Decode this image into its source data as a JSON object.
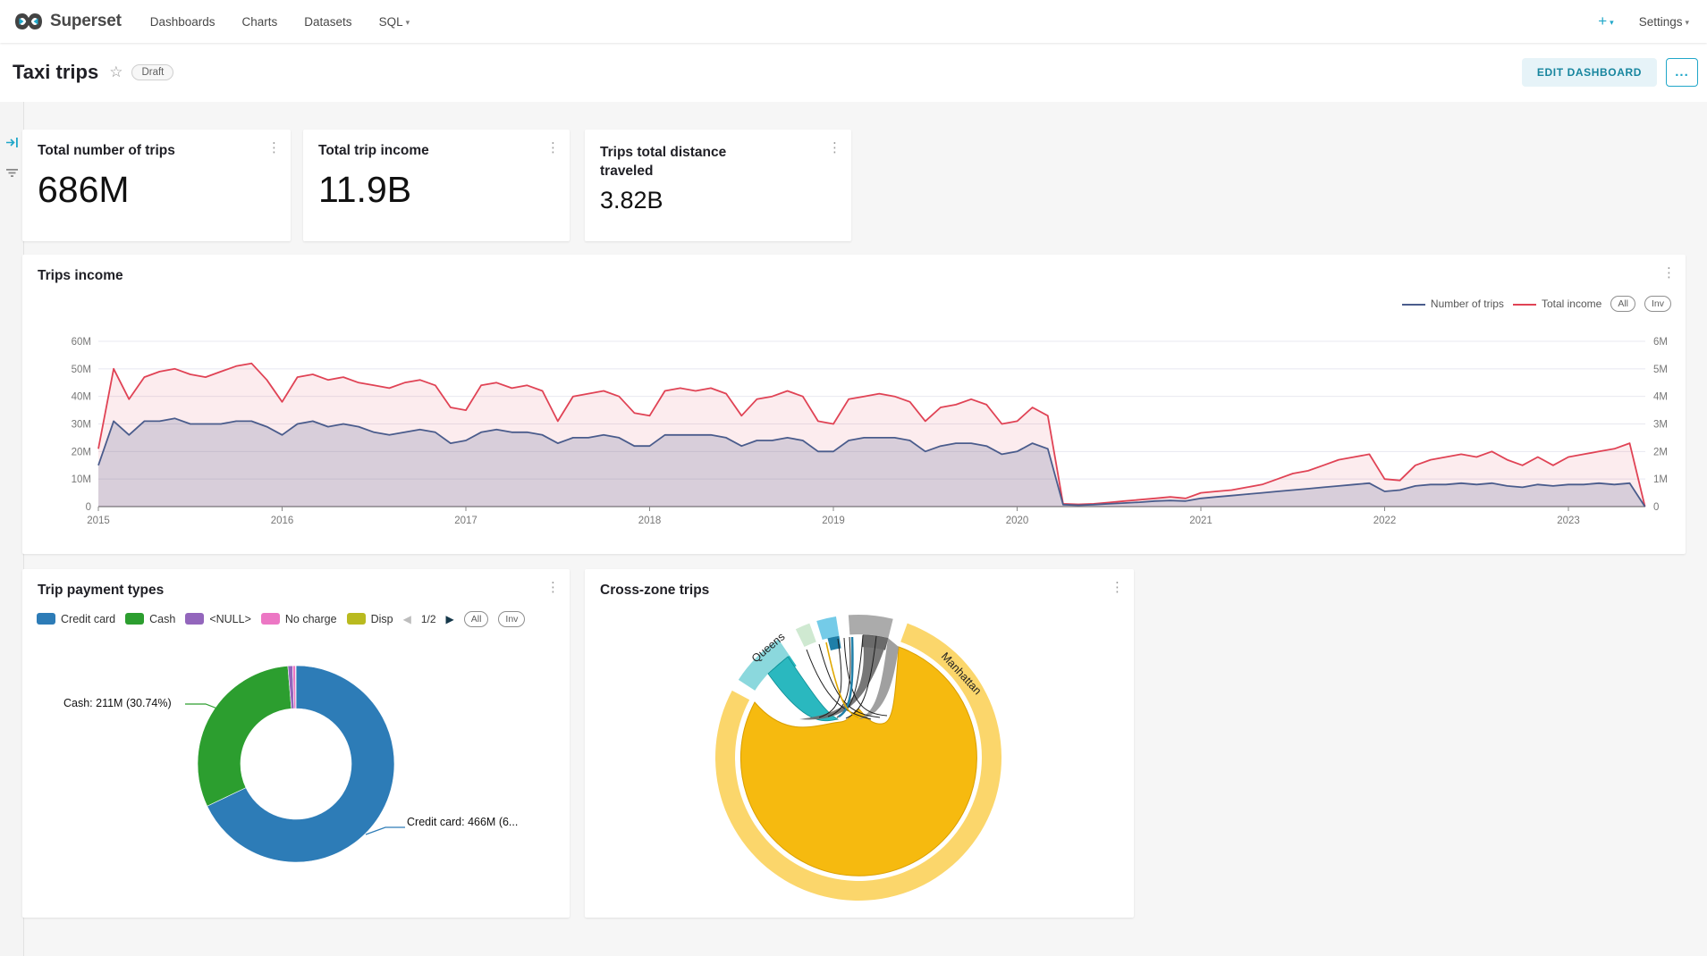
{
  "nav": {
    "brand": "Superset",
    "items": [
      {
        "label": "Dashboards"
      },
      {
        "label": "Charts"
      },
      {
        "label": "Datasets"
      },
      {
        "label": "SQL",
        "caret": "true"
      }
    ],
    "plus_label": "+",
    "settings_label": "Settings"
  },
  "header": {
    "title": "Taxi trips",
    "status_badge": "Draft",
    "edit_button": "EDIT DASHBOARD",
    "more_button": "..."
  },
  "kpis": [
    {
      "title": "Total number of trips",
      "value": "686M"
    },
    {
      "title": "Total trip income",
      "value": "11.9B"
    },
    {
      "title": "Trips total distance traveled",
      "value": "3.82B"
    }
  ],
  "trips_income_card": {
    "title": "Trips income",
    "legend": [
      {
        "label": "Number of trips",
        "color": "#4a5c8c"
      },
      {
        "label": "Total income",
        "color": "#e04355"
      }
    ],
    "buttons": {
      "all": "All",
      "inv": "Inv"
    }
  },
  "payment_card": {
    "title": "Trip payment types",
    "legend": [
      {
        "label": "Credit card",
        "color": "#2d7cb7"
      },
      {
        "label": "Cash",
        "color": "#2c9e2f"
      },
      {
        "label": "<NULL>",
        "color": "#9366bc"
      },
      {
        "label": "No charge",
        "color": "#ec77c4"
      },
      {
        "label": "Disp",
        "color": "#b9ba1f"
      }
    ],
    "pagination": {
      "prev": "◀",
      "page": "1/2",
      "next": "▶"
    },
    "buttons": {
      "all": "All",
      "inv": "Inv"
    },
    "callouts": {
      "cash": "Cash: 211M (30.74%)",
      "credit": "Credit card: 466M (6..."
    }
  },
  "crosszone_card": {
    "title": "Cross-zone trips",
    "zone_labels": {
      "big": "Manhattan",
      "small": "Queens"
    }
  },
  "chart_data": [
    {
      "type": "line",
      "title": "Trips income",
      "x_start_year": 2015,
      "x_step_months": 1,
      "x_ticks": [
        "2015",
        "2016",
        "2017",
        "2018",
        "2019",
        "2020",
        "2021",
        "2022",
        "2023"
      ],
      "y_left_ticks": [
        "0",
        "10M",
        "20M",
        "30M",
        "40M",
        "50M",
        "60M"
      ],
      "y_right_ticks": [
        "0",
        "1M",
        "2M",
        "3M",
        "4M",
        "5M",
        "6M"
      ],
      "y_left_max": 60,
      "grid": true,
      "legend_position": "top-right",
      "series": [
        {
          "name": "Total income",
          "color": "#e04355",
          "fill": "rgba(224,67,85,0.10)",
          "values": [
            21,
            50,
            39,
            47,
            49,
            50,
            48,
            47,
            49,
            51,
            52,
            46,
            38,
            47,
            48,
            46,
            47,
            45,
            44,
            43,
            45,
            46,
            44,
            36,
            35,
            44,
            45,
            43,
            44,
            42,
            31,
            40,
            41,
            42,
            40,
            34,
            33,
            42,
            43,
            42,
            43,
            41,
            33,
            39,
            40,
            42,
            40,
            31,
            30,
            39,
            40,
            41,
            40,
            38,
            31,
            36,
            37,
            39,
            37,
            30,
            31,
            36,
            33,
            1,
            0.8,
            1,
            1.5,
            2,
            2.5,
            3,
            3.5,
            3,
            5,
            5.5,
            6,
            7,
            8,
            10,
            12,
            13,
            15,
            17,
            18,
            19,
            10,
            9.5,
            15,
            17,
            18,
            19,
            18,
            20,
            17,
            15,
            18,
            15,
            18,
            19,
            20,
            21,
            23,
            0
          ]
        },
        {
          "name": "Number of trips",
          "color": "#4a5c8c",
          "fill": "rgba(74,92,140,0.20)",
          "values": [
            15,
            31,
            26,
            31,
            31,
            32,
            30,
            30,
            30,
            31,
            31,
            29,
            26,
            30,
            31,
            29,
            30,
            29,
            27,
            26,
            27,
            28,
            27,
            23,
            24,
            27,
            28,
            27,
            27,
            26,
            23,
            25,
            25,
            26,
            25,
            22,
            22,
            26,
            26,
            26,
            26,
            25,
            22,
            24,
            24,
            25,
            24,
            20,
            20,
            24,
            25,
            25,
            25,
            24,
            20,
            22,
            23,
            23,
            22,
            19,
            20,
            23,
            21,
            0.7,
            0.5,
            0.7,
            1,
            1.3,
            1.6,
            2,
            2.2,
            2,
            3,
            3.5,
            4,
            4.5,
            5,
            5.5,
            6,
            6.5,
            7,
            7.5,
            8,
            8.5,
            5.5,
            6,
            7.5,
            8,
            8,
            8.5,
            8,
            8.5,
            7.5,
            7,
            8,
            7.5,
            8,
            8,
            8.5,
            8,
            8.5,
            0
          ]
        }
      ]
    },
    {
      "type": "pie",
      "title": "Trip payment types",
      "donut": true,
      "slices": [
        {
          "name": "Credit card",
          "value_label": "466M",
          "pct": 67.94,
          "color": "#2d7cb7"
        },
        {
          "name": "Cash",
          "value_label": "211M",
          "pct": 30.74,
          "color": "#2c9e2f"
        },
        {
          "name": "<NULL>",
          "pct": 0.78,
          "color": "#9366bc"
        },
        {
          "name": "No charge",
          "pct": 0.48,
          "color": "#ec77c4"
        },
        {
          "name": "Disp",
          "pct": 0.06,
          "color": "#b9ba1f"
        }
      ]
    },
    {
      "type": "chord",
      "title": "Cross-zone trips",
      "zones": [
        "Manhattan",
        "Queens"
      ],
      "arcs": [
        {
          "zone": "Manhattan",
          "span_deg": 278,
          "color": "#fbd66b"
        },
        {
          "zone": "Queens",
          "span_deg": 23,
          "color": "#8bd8dd"
        },
        {
          "zone": "small-segment-green",
          "span_deg": 6,
          "color": "#cfe9d1"
        },
        {
          "zone": "small-segment-blue",
          "span_deg": 8,
          "color": "#74cbe8"
        },
        {
          "zone": "small-segment-gray",
          "span_deg": 18,
          "color": "#ababab"
        }
      ],
      "dominant_flow": "Manhattan-Manhattan"
    }
  ]
}
